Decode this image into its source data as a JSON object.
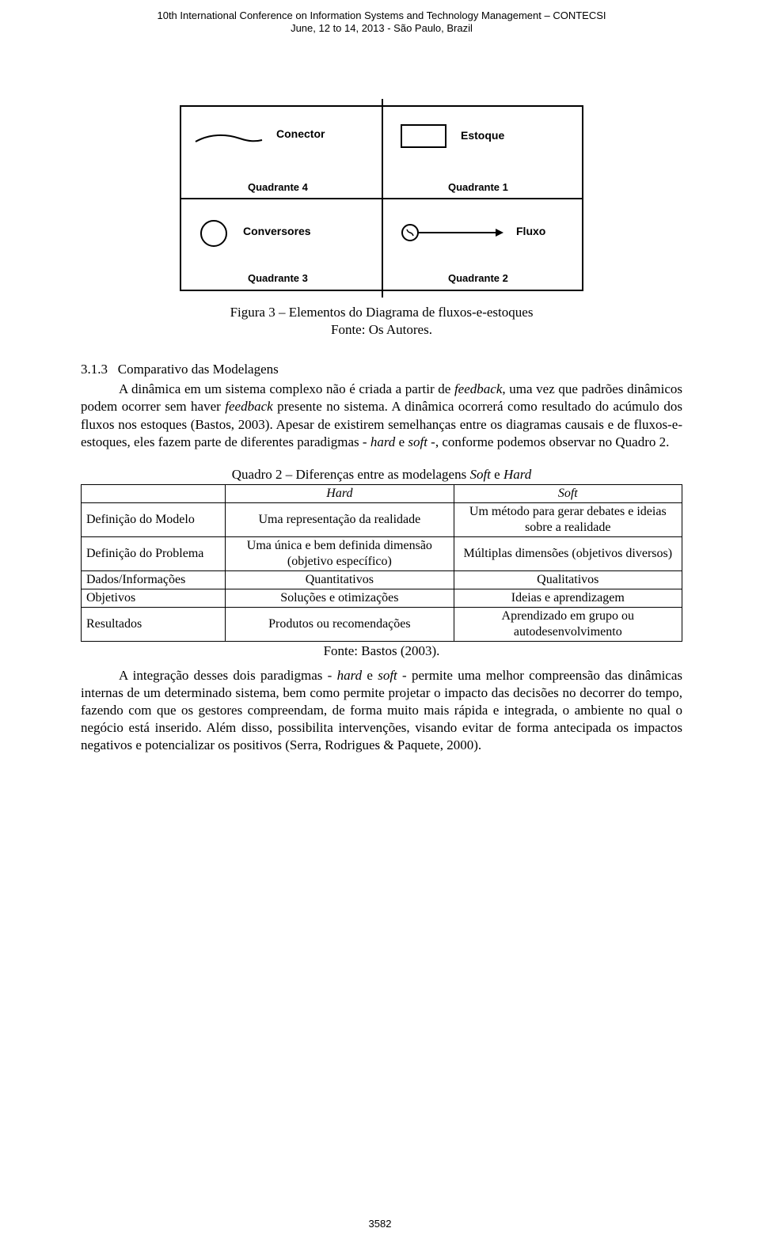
{
  "header": {
    "line1": "10th International Conference on Information Systems and Technology Management – CONTECSI",
    "line2": "June, 12 to 14, 2013 - São Paulo, Brazil"
  },
  "diagram": {
    "box_border_color": "#000000",
    "background_color": "#ffffff",
    "label_font": "Arial",
    "label_fontsize": 14,
    "quadrant_label_fontsize": 13,
    "quadrants": {
      "tl": {
        "symbol": "connector",
        "label": "Conector",
        "qlabel": "Quadrante 4"
      },
      "tr": {
        "symbol": "stock",
        "label": "Estoque",
        "qlabel": "Quadrante 1"
      },
      "bl": {
        "symbol": "converter",
        "label": "Conversores",
        "qlabel": "Quadrante 3"
      },
      "br": {
        "symbol": "flow",
        "label": "Fluxo",
        "qlabel": "Quadrante 2"
      }
    }
  },
  "figure_caption": {
    "line1": "Figura 3 – Elementos do Diagrama de fluxos-e-estoques",
    "line2": "Fonte: Os Autores."
  },
  "section": {
    "number": "3.1.3",
    "title": "Comparativo das Modelagens"
  },
  "paragraph1_parts": [
    {
      "t": "A dinâmica em um sistema complexo não é criada a partir de "
    },
    {
      "t": "feedback",
      "i": true
    },
    {
      "t": ", uma vez que padrões dinâmicos podem ocorrer sem haver "
    },
    {
      "t": "feedback",
      "i": true
    },
    {
      "t": " presente no sistema. A dinâmica ocorrerá como resultado do acúmulo dos fluxos nos estoques (Bastos, 2003). Apesar de existirem semelhanças entre os diagramas causais e de fluxos-e-estoques, eles fazem parte de diferentes paradigmas - "
    },
    {
      "t": "hard",
      "i": true
    },
    {
      "t": " e "
    },
    {
      "t": "soft",
      "i": true
    },
    {
      "t": " -, conforme podemos observar no Quadro 2."
    }
  ],
  "quadro": {
    "caption_parts": [
      {
        "t": "Quadro 2 – Diferenças entre as modelagens "
      },
      {
        "t": "Soft",
        "i": true
      },
      {
        "t": " e "
      },
      {
        "t": "Hard",
        "i": true
      }
    ],
    "col_widths_pct": [
      24,
      38,
      38
    ],
    "header": [
      "",
      "Hard",
      "Soft"
    ],
    "rows": [
      {
        "label": "Definição do Modelo",
        "hard": "Uma representação da realidade",
        "soft": "Um método para gerar debates e ideias sobre a realidade"
      },
      {
        "label": "Definição do Problema",
        "hard": "Uma única e bem definida dimensão (objetivo específico)",
        "soft": "Múltiplas dimensões (objetivos diversos)"
      },
      {
        "label": "Dados/Informações",
        "hard": "Quantitativos",
        "soft": "Qualitativos"
      },
      {
        "label": "Objetivos",
        "hard": "Soluções e otimizações",
        "soft": "Ideias e aprendizagem"
      },
      {
        "label": "Resultados",
        "hard": "Produtos ou recomendações",
        "soft": "Aprendizado em grupo ou autodesenvolvimento"
      }
    ],
    "source": "Fonte: Bastos (2003)."
  },
  "paragraph2_parts": [
    {
      "t": "A integração desses dois paradigmas - "
    },
    {
      "t": "hard",
      "i": true
    },
    {
      "t": " e "
    },
    {
      "t": "soft",
      "i": true
    },
    {
      "t": " - permite uma melhor compreensão das dinâmicas internas de um determinado sistema, bem como permite projetar o impacto das decisões no decorrer do tempo, fazendo com que os gestores compreendam, de forma muito mais rápida e integrada, o ambiente no qual o negócio está inserido. Além disso, possibilita intervenções, visando evitar de forma antecipada os impactos negativos e potencializar os positivos (Serra, Rodrigues & Paquete, 2000)."
    }
  ],
  "page_number": "3582"
}
